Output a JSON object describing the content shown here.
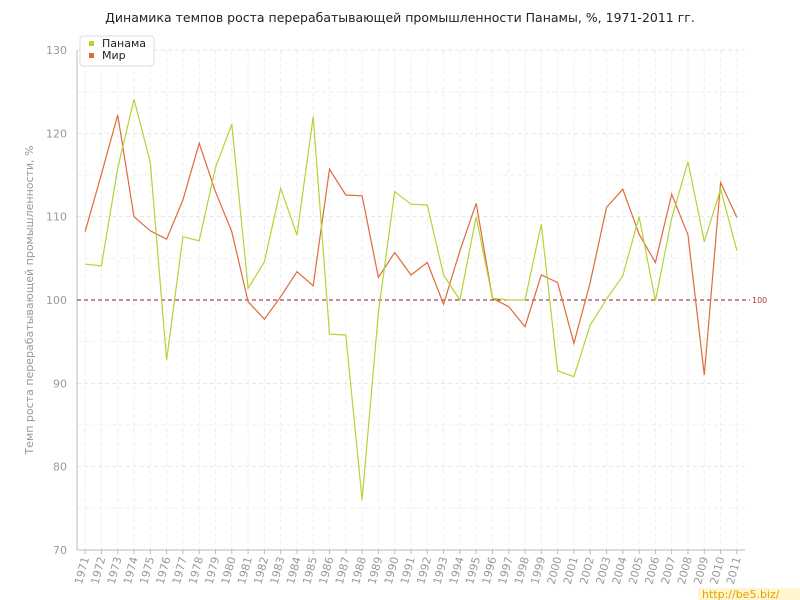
{
  "chart_data": {
    "type": "line",
    "title": "Динамика темпов роста перерабатывающей промышленности Панамы, %, 1971-2011 гг.",
    "xlabel": "",
    "ylabel": "Темп роста перерабатывающей промышленности, %",
    "ylim": [
      70,
      130
    ],
    "yticks": [
      70,
      80,
      90,
      100,
      110,
      120,
      130
    ],
    "grid": true,
    "legend_position": "top-left",
    "reference_line": {
      "value": 100,
      "label": "100",
      "color": "#8b1a2b"
    },
    "categories": [
      "1971",
      "1972",
      "1973",
      "1974",
      "1975",
      "1976",
      "1977",
      "1978",
      "1979",
      "1980",
      "1981",
      "1982",
      "1983",
      "1984",
      "1985",
      "1986",
      "1987",
      "1988",
      "1989",
      "1990",
      "1991",
      "1992",
      "1993",
      "1994",
      "1995",
      "1996",
      "1997",
      "1998",
      "1999",
      "2000",
      "2001",
      "2002",
      "2003",
      "2004",
      "2005",
      "2006",
      "2007",
      "2008",
      "2009",
      "2010",
      "2011"
    ],
    "series": [
      {
        "name": "Панама",
        "color": "#b5d334",
        "values": [
          104.3,
          104.1,
          115.8,
          124.1,
          116.5,
          92.8,
          107.6,
          107.1,
          115.9,
          121.1,
          101.4,
          104.6,
          113.4,
          107.8,
          122.0,
          95.9,
          95.8,
          76.0,
          98.5,
          113.0,
          111.5,
          111.4,
          103.0,
          100.0,
          110.0,
          100.2,
          100.0,
          100.0,
          109.1,
          91.5,
          90.8,
          97.0,
          100.1,
          102.9,
          110.0,
          99.9,
          109.8,
          116.6,
          107.0,
          113.3,
          105.9
        ]
      },
      {
        "name": "Мир",
        "color": "#e06a3a",
        "values": [
          108.2,
          115.1,
          122.2,
          110.0,
          108.3,
          107.3,
          112.0,
          118.8,
          113.0,
          108.2,
          99.8,
          97.7,
          100.4,
          103.4,
          101.7,
          115.7,
          112.6,
          112.5,
          102.7,
          105.7,
          103.0,
          104.5,
          99.5,
          105.9,
          111.6,
          100.2,
          99.2,
          96.8,
          103.0,
          102.1,
          94.8,
          102.1,
          111.1,
          113.3,
          107.9,
          104.5,
          112.7,
          107.8,
          91.0,
          114.1,
          109.9
        ]
      }
    ]
  },
  "watermark": "http://be5.biz/"
}
